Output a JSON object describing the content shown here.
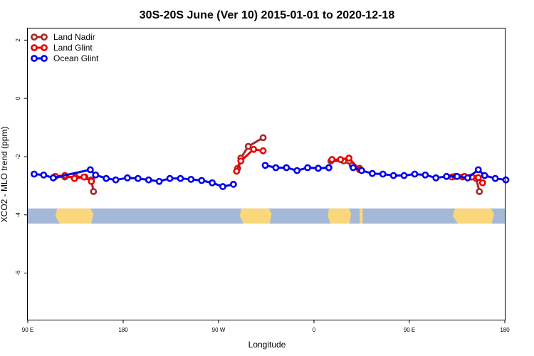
{
  "chart_data": {
    "type": "line",
    "title": "30S-20S June (Ver 10)   2015-01-01 to 2020-12-18",
    "xlabel": "Longitude",
    "ylabel": "XCO2 - MLO trend (ppm)",
    "xlim": [
      90,
      540
    ],
    "ylim": [
      -7.6,
      2.4
    ],
    "x_ticks": [
      {
        "value": 90,
        "label": "90 E"
      },
      {
        "value": 180,
        "label": "180"
      },
      {
        "value": 270,
        "label": "90 W"
      },
      {
        "value": 360,
        "label": "0"
      },
      {
        "value": 450,
        "label": "90 E"
      },
      {
        "value": 540,
        "label": "180"
      }
    ],
    "y_ticks": [
      {
        "value": 2,
        "label": "2"
      },
      {
        "value": 0,
        "label": "0"
      },
      {
        "value": -2,
        "label": "-2"
      },
      {
        "value": -4,
        "label": "-4"
      },
      {
        "value": -6,
        "label": "-6"
      }
    ],
    "grid": false,
    "legend_position": "top-left",
    "map_strip": {
      "y_top": -3.78,
      "y_bottom": -4.3,
      "ocean_color": "#a4b8d8",
      "land_color": "#fbd77c",
      "land_ranges": [
        [
          116,
          152
        ],
        [
          290,
          320
        ],
        [
          373,
          395
        ],
        [
          403,
          406
        ],
        [
          491,
          530
        ]
      ]
    },
    "series": [
      {
        "name": "Land Nadir",
        "color": "#a52a2a",
        "segments": [
          [
            [
              115,
              -2.7
            ],
            [
              125,
              -2.7
            ],
            [
              135,
              -2.7
            ],
            [
              144,
              -2.7
            ],
            [
              150,
              -2.8
            ],
            [
              152,
              -3.2
            ]
          ],
          [
            [
              288,
              -2.4
            ],
            [
              291,
              -2.05
            ],
            [
              298,
              -1.65
            ],
            [
              312,
              -1.35
            ]
          ],
          [
            [
              376,
              -2.15
            ],
            [
              388,
              -2.15
            ],
            [
              396,
              -2.3
            ],
            [
              403,
              -2.4
            ]
          ],
          [
            [
              490,
              -2.7
            ],
            [
              500,
              -2.7
            ],
            [
              508,
              -2.7
            ],
            [
              513,
              -2.75
            ],
            [
              516,
              -3.2
            ]
          ]
        ]
      },
      {
        "name": "Land Glint",
        "color": "#ee0000",
        "segments": [
          [
            [
              116,
              -2.68
            ],
            [
              125,
              -2.65
            ],
            [
              134,
              -2.75
            ],
            [
              143,
              -2.7
            ],
            [
              150,
              -2.85
            ]
          ],
          [
            [
              287,
              -2.5
            ],
            [
              291,
              -2.15
            ],
            [
              303,
              -1.75
            ],
            [
              312,
              -1.8
            ]
          ],
          [
            [
              377,
              -2.1
            ],
            [
              385,
              -2.1
            ],
            [
              393,
              -2.05
            ],
            [
              403,
              -2.45
            ]
          ],
          [
            [
              493,
              -2.68
            ],
            [
              502,
              -2.68
            ],
            [
              509,
              -2.7
            ],
            [
              515,
              -2.72
            ],
            [
              519,
              -2.9
            ]
          ]
        ]
      },
      {
        "name": "Ocean Glint",
        "color": "#0000ee",
        "segments": [
          [
            [
              96,
              -2.6
            ],
            [
              105,
              -2.63
            ],
            [
              114,
              -2.73
            ],
            [
              149,
              -2.45
            ],
            [
              154,
              -2.63
            ],
            [
              164,
              -2.75
            ],
            [
              173,
              -2.8
            ],
            [
              184,
              -2.73
            ],
            [
              194,
              -2.75
            ],
            [
              204,
              -2.8
            ],
            [
              214,
              -2.85
            ],
            [
              224,
              -2.75
            ],
            [
              234,
              -2.75
            ],
            [
              244,
              -2.78
            ],
            [
              254,
              -2.82
            ],
            [
              264,
              -2.9
            ],
            [
              274,
              -3.03
            ],
            [
              284,
              -2.95
            ]
          ],
          [
            [
              314,
              -2.3
            ],
            [
              324,
              -2.38
            ],
            [
              334,
              -2.38
            ],
            [
              344,
              -2.48
            ],
            [
              354,
              -2.38
            ],
            [
              364,
              -2.4
            ],
            [
              374,
              -2.38
            ],
            [
              374,
              -2.38
            ]
          ],
          [
            [
              397,
              -2.38
            ],
            [
              405,
              -2.48
            ],
            [
              415,
              -2.58
            ],
            [
              425,
              -2.6
            ],
            [
              435,
              -2.65
            ],
            [
              445,
              -2.65
            ],
            [
              455,
              -2.6
            ],
            [
              465,
              -2.63
            ],
            [
              475,
              -2.73
            ],
            [
              485,
              -2.68
            ],
            [
              495,
              -2.68
            ],
            [
              505,
              -2.73
            ],
            [
              515,
              -2.45
            ],
            [
              521,
              -2.65
            ],
            [
              531,
              -2.75
            ],
            [
              541,
              -2.8
            ]
          ]
        ]
      }
    ]
  }
}
